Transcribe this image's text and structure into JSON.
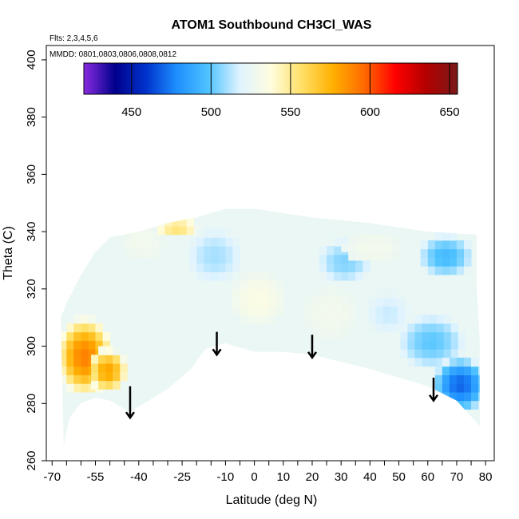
{
  "chart_data": {
    "type": "heatmap",
    "title": "ATOM1 Southbound CH3Cl_WAS",
    "subtitle_flights": "Flts: 2,3,4,5,6",
    "subtitle_dates": "MMDD: 0801,0803,0806,0808,0812",
    "xlabel": "Latitude (deg N)",
    "ylabel": "Theta (C)",
    "xlim": [
      -72,
      83
    ],
    "ylim": [
      260,
      405
    ],
    "x_tick_labels": [
      "-70",
      "-55",
      "-40",
      "-25",
      "-10",
      "0",
      "10",
      "20",
      "30",
      "40",
      "50",
      "60",
      "70",
      "80"
    ],
    "x_tick_positions": [
      -70,
      -55,
      -40,
      -25,
      -10,
      0,
      10,
      20,
      30,
      40,
      50,
      60,
      70,
      80
    ],
    "y_ticks": [
      260,
      280,
      300,
      320,
      340,
      360,
      380,
      400
    ],
    "colorbar": {
      "ticks": [
        450,
        500,
        550,
        600,
        650
      ],
      "range": [
        420,
        655
      ],
      "colors": [
        "#8a2be2",
        "#00008b",
        "#0033cc",
        "#1e90ff",
        "#4fc3ff",
        "#dff3ff",
        "#fffde0",
        "#ffe066",
        "#ffb000",
        "#ff6a00",
        "#ff0000",
        "#b30000",
        "#7a1a1a"
      ]
    },
    "domain_boundary": {
      "lower": [
        [
          -66,
          265
        ],
        [
          -64,
          275
        ],
        [
          -60,
          280
        ],
        [
          -55,
          282
        ],
        [
          -50,
          281
        ],
        [
          -45,
          278
        ],
        [
          -43,
          277
        ],
        [
          -30,
          285
        ],
        [
          -22,
          292
        ],
        [
          -17,
          299
        ],
        [
          -10,
          301
        ],
        [
          0,
          298
        ],
        [
          10,
          298
        ],
        [
          20,
          297
        ],
        [
          40,
          292
        ],
        [
          60,
          286
        ],
        [
          70,
          281
        ],
        [
          78,
          272
        ]
      ],
      "upper": [
        [
          78,
          302
        ],
        [
          77,
          320
        ],
        [
          77,
          339
        ],
        [
          60,
          340
        ],
        [
          40,
          343
        ],
        [
          20,
          345
        ],
        [
          0,
          348
        ],
        [
          -10,
          348
        ],
        [
          -20,
          345
        ],
        [
          -30,
          343
        ],
        [
          -40,
          340
        ],
        [
          -50,
          338
        ],
        [
          -55,
          333
        ],
        [
          -60,
          325
        ],
        [
          -65,
          315
        ],
        [
          -67,
          310
        ]
      ]
    },
    "field_anomalies": [
      {
        "x": -60,
        "y": 295,
        "value": 590,
        "rx": 10,
        "ry": 14
      },
      {
        "x": -52,
        "y": 290,
        "value": 580,
        "rx": 7,
        "ry": 8
      },
      {
        "x": -40,
        "y": 335,
        "value": 530,
        "rx": 8,
        "ry": 7
      },
      {
        "x": -28,
        "y": 340,
        "value": 555,
        "rx": 8,
        "ry": 4
      },
      {
        "x": -35,
        "y": 310,
        "value": 525,
        "rx": 14,
        "ry": 10
      },
      {
        "x": -15,
        "y": 330,
        "value": 510,
        "rx": 10,
        "ry": 10
      },
      {
        "x": 0,
        "y": 315,
        "value": 535,
        "rx": 10,
        "ry": 10
      },
      {
        "x": 25,
        "y": 310,
        "value": 530,
        "rx": 10,
        "ry": 10
      },
      {
        "x": 30,
        "y": 328,
        "value": 505,
        "rx": 10,
        "ry": 8
      },
      {
        "x": 40,
        "y": 333,
        "value": 530,
        "rx": 10,
        "ry": 6
      },
      {
        "x": 45,
        "y": 310,
        "value": 515,
        "rx": 8,
        "ry": 8
      },
      {
        "x": 60,
        "y": 300,
        "value": 500,
        "rx": 12,
        "ry": 10
      },
      {
        "x": 65,
        "y": 330,
        "value": 495,
        "rx": 10,
        "ry": 8
      },
      {
        "x": 70,
        "y": 285,
        "value": 470,
        "rx": 10,
        "ry": 10
      }
    ],
    "arrows": [
      {
        "x": -43,
        "y_top": 286,
        "y_bottom": 275
      },
      {
        "x": -13,
        "y_top": 305,
        "y_bottom": 297
      },
      {
        "x": 20,
        "y_top": 304,
        "y_bottom": 296
      },
      {
        "x": 62,
        "y_top": 289,
        "y_bottom": 281
      }
    ]
  }
}
